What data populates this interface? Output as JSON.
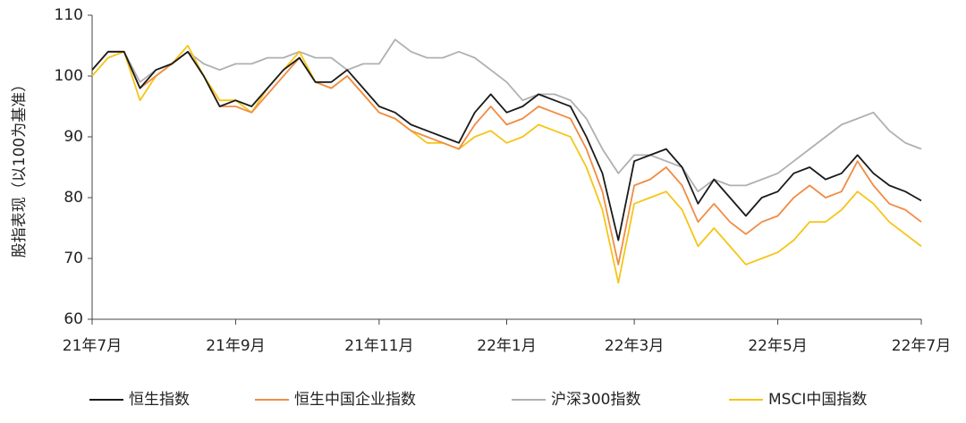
{
  "chart_data": {
    "type": "line",
    "y_label": "股指表现（以100为基准）",
    "categories": [
      "21年7月",
      null,
      null,
      null,
      null,
      null,
      null,
      null,
      null,
      "21年9月",
      null,
      null,
      null,
      null,
      null,
      null,
      null,
      null,
      "21年11月",
      null,
      null,
      null,
      null,
      null,
      null,
      null,
      "22年1月",
      null,
      null,
      null,
      null,
      null,
      null,
      null,
      "22年3月",
      null,
      null,
      null,
      null,
      null,
      null,
      null,
      null,
      "22年5月",
      null,
      null,
      null,
      null,
      null,
      null,
      null,
      null,
      "22年7月"
    ],
    "series": [
      {
        "name": "恒生指数",
        "color": "#1a1a1a",
        "values": [
          101,
          104,
          104,
          98,
          101,
          102,
          104,
          100,
          95,
          96,
          95,
          98,
          101,
          103,
          99,
          99,
          101,
          98,
          95,
          94,
          92,
          91,
          90,
          89,
          94,
          97,
          94,
          95,
          97,
          96,
          95,
          90,
          84,
          73,
          86,
          87,
          88,
          85,
          79,
          83,
          80,
          77,
          80,
          81,
          84,
          85,
          83,
          84,
          87,
          84,
          82,
          81,
          79.5
        ]
      },
      {
        "name": "恒生中国企业指数",
        "color": "#f08c45",
        "values": [
          101,
          104,
          104,
          98,
          100,
          102,
          104,
          100,
          95,
          95,
          94,
          97,
          100,
          103,
          99,
          98,
          100,
          97,
          94,
          93,
          91,
          90,
          89,
          88,
          92,
          95,
          92,
          93,
          95,
          94,
          93,
          88,
          81,
          69,
          82,
          83,
          85,
          82,
          76,
          79,
          76,
          74,
          76,
          77,
          80,
          82,
          80,
          81,
          86,
          82,
          79,
          78,
          76
        ]
      },
      {
        "name": "沪深300指数",
        "color": "#b0b0b0",
        "values": [
          101,
          104,
          104,
          99,
          101,
          102,
          104,
          102,
          101,
          102,
          102,
          103,
          103,
          104,
          103,
          103,
          101,
          102,
          102,
          106,
          104,
          103,
          103,
          104,
          103,
          101,
          99,
          96,
          97,
          97,
          96,
          93,
          88,
          84,
          87,
          87,
          86,
          85,
          81,
          83,
          82,
          82,
          83,
          84,
          86,
          88,
          90,
          92,
          93,
          94,
          91,
          89,
          88
        ]
      },
      {
        "name": "MSCI中国指数",
        "color": "#f5c518",
        "values": [
          100,
          103,
          104,
          96,
          100,
          102,
          105,
          100,
          96,
          96,
          94,
          98,
          101,
          104,
          99,
          98,
          100,
          97,
          94,
          93,
          91,
          89,
          89,
          88,
          90,
          91,
          89,
          90,
          92,
          91,
          90,
          85,
          78,
          66,
          79,
          80,
          81,
          78,
          72,
          75,
          72,
          69,
          70,
          71,
          73,
          76,
          76,
          78,
          81,
          79,
          76,
          74,
          72
        ]
      }
    ],
    "ylim": [
      60,
      110
    ],
    "yticks": [
      60,
      70,
      80,
      90,
      100,
      110
    ],
    "grid": false,
    "legend": "bottom"
  }
}
